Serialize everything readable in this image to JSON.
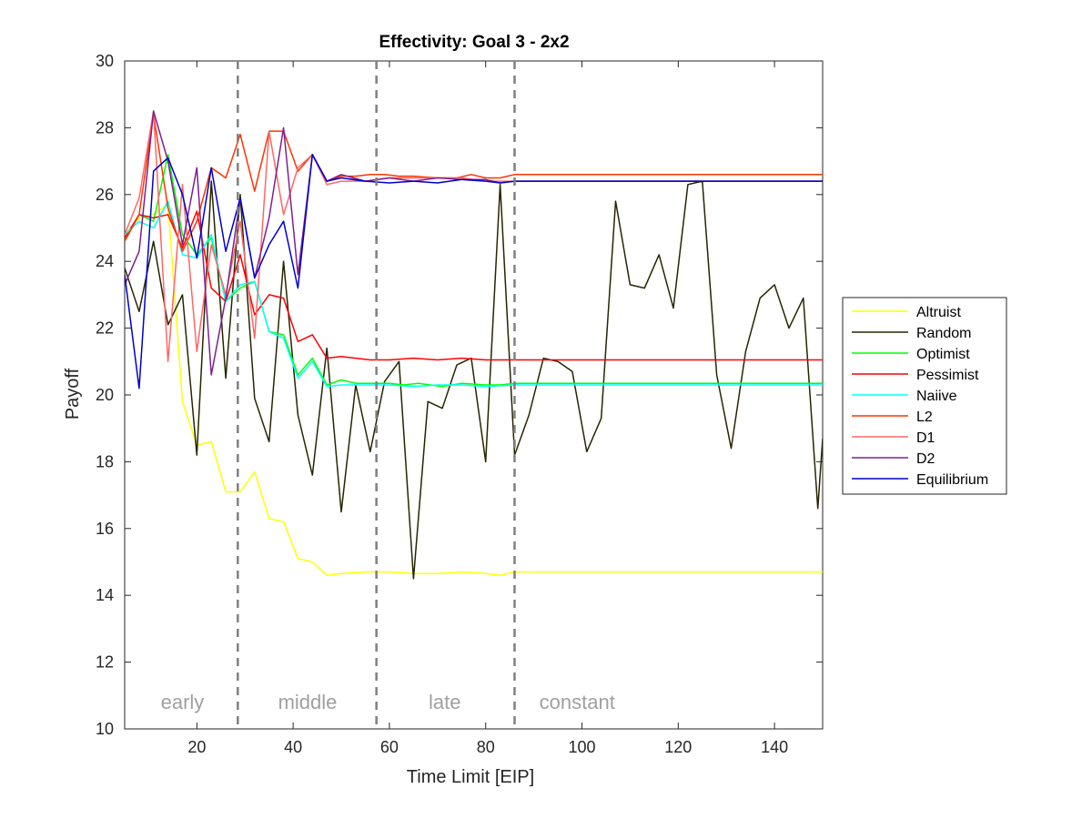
{
  "chart_data": {
    "type": "line",
    "title": "Effectivity: Goal 3 - 2x2",
    "xlabel": "Time Limit [EIP]",
    "ylabel": "Payoff",
    "xlim": [
      5,
      150
    ],
    "ylim": [
      10,
      30
    ],
    "xticks": [
      20,
      40,
      60,
      80,
      100,
      120,
      140
    ],
    "yticks": [
      10,
      12,
      14,
      16,
      18,
      20,
      22,
      24,
      26,
      28,
      30
    ],
    "grid": false,
    "legend_position": "outside-right",
    "phase_boundaries": [
      28.5,
      57.3,
      86
    ],
    "phase_labels": [
      {
        "text": "early",
        "x": 17
      },
      {
        "text": "middle",
        "x": 43
      },
      {
        "text": "late",
        "x": 71.5
      },
      {
        "text": "constant",
        "x": 99
      }
    ],
    "series": [
      {
        "name": "Altruist",
        "color": "#ffff00",
        "points": [
          [
            5,
            24.8
          ],
          [
            8,
            25.3
          ],
          [
            11,
            25.4
          ],
          [
            14,
            25.7
          ],
          [
            17,
            19.8
          ],
          [
            20,
            18.5
          ],
          [
            23,
            18.6
          ],
          [
            26,
            17.1
          ],
          [
            29,
            17.1
          ],
          [
            32,
            17.7
          ],
          [
            35,
            16.3
          ],
          [
            38,
            16.2
          ],
          [
            41,
            15.1
          ],
          [
            44,
            15.0
          ],
          [
            47,
            14.6
          ],
          [
            50,
            14.65
          ],
          [
            55,
            14.7
          ],
          [
            60,
            14.7
          ],
          [
            65,
            14.65
          ],
          [
            70,
            14.65
          ],
          [
            75,
            14.7
          ],
          [
            80,
            14.65
          ],
          [
            83,
            14.6
          ],
          [
            86,
            14.7
          ],
          [
            150,
            14.7
          ]
        ]
      },
      {
        "name": "Random",
        "color": "#262600",
        "points": [
          [
            5,
            23.8
          ],
          [
            8,
            22.5
          ],
          [
            11,
            24.6
          ],
          [
            14,
            22.1
          ],
          [
            17,
            23.0
          ],
          [
            20,
            18.2
          ],
          [
            23,
            26.4
          ],
          [
            26,
            20.5
          ],
          [
            29,
            26.0
          ],
          [
            32,
            19.9
          ],
          [
            35,
            18.6
          ],
          [
            38,
            24.0
          ],
          [
            41,
            19.4
          ],
          [
            44,
            17.6
          ],
          [
            47,
            21.4
          ],
          [
            50,
            16.5
          ],
          [
            53,
            20.3
          ],
          [
            56,
            18.3
          ],
          [
            59,
            20.4
          ],
          [
            62,
            21.0
          ],
          [
            65,
            14.5
          ],
          [
            68,
            19.8
          ],
          [
            71,
            19.6
          ],
          [
            74,
            20.9
          ],
          [
            77,
            21.1
          ],
          [
            80,
            18.0
          ],
          [
            83,
            26.3
          ],
          [
            86,
            18.2
          ],
          [
            89,
            19.4
          ],
          [
            92,
            21.1
          ],
          [
            95,
            21.0
          ],
          [
            98,
            20.7
          ],
          [
            101,
            18.3
          ],
          [
            104,
            19.3
          ],
          [
            107,
            25.8
          ],
          [
            110,
            23.3
          ],
          [
            113,
            23.2
          ],
          [
            116,
            24.2
          ],
          [
            119,
            22.6
          ],
          [
            122,
            26.3
          ],
          [
            125,
            26.4
          ],
          [
            128,
            20.6
          ],
          [
            131,
            18.4
          ],
          [
            134,
            21.3
          ],
          [
            137,
            22.9
          ],
          [
            140,
            23.3
          ],
          [
            143,
            22.0
          ],
          [
            146,
            22.9
          ],
          [
            149,
            16.6
          ],
          [
            150,
            18.7
          ]
        ]
      },
      {
        "name": "Optimist",
        "color": "#00ff00",
        "points": [
          [
            5,
            24.6
          ],
          [
            8,
            25.4
          ],
          [
            11,
            25.2
          ],
          [
            14,
            27.2
          ],
          [
            17,
            24.8
          ],
          [
            20,
            24.2
          ],
          [
            23,
            24.7
          ],
          [
            26,
            22.8
          ],
          [
            29,
            23.2
          ],
          [
            32,
            23.4
          ],
          [
            35,
            21.9
          ],
          [
            38,
            21.8
          ],
          [
            41,
            20.6
          ],
          [
            44,
            21.1
          ],
          [
            47,
            20.3
          ],
          [
            50,
            20.45
          ],
          [
            53,
            20.35
          ],
          [
            56,
            20.35
          ],
          [
            60,
            20.35
          ],
          [
            63,
            20.3
          ],
          [
            66,
            20.35
          ],
          [
            71,
            20.25
          ],
          [
            75,
            20.35
          ],
          [
            80,
            20.3
          ],
          [
            83,
            20.3
          ],
          [
            86,
            20.35
          ],
          [
            150,
            20.35
          ]
        ]
      },
      {
        "name": "Pessimist",
        "color": "#ff0000",
        "points": [
          [
            5,
            24.7
          ],
          [
            8,
            25.4
          ],
          [
            11,
            25.3
          ],
          [
            14,
            25.4
          ],
          [
            17,
            24.4
          ],
          [
            20,
            25.5
          ],
          [
            23,
            23.2
          ],
          [
            26,
            22.8
          ],
          [
            29,
            24.2
          ],
          [
            32,
            22.4
          ],
          [
            35,
            23.0
          ],
          [
            38,
            22.9
          ],
          [
            41,
            21.6
          ],
          [
            44,
            21.8
          ],
          [
            47,
            21.1
          ],
          [
            50,
            21.15
          ],
          [
            53,
            21.1
          ],
          [
            56,
            21.05
          ],
          [
            60,
            21.05
          ],
          [
            65,
            21.1
          ],
          [
            70,
            21.05
          ],
          [
            75,
            21.1
          ],
          [
            80,
            21.05
          ],
          [
            83,
            21.05
          ],
          [
            86,
            21.05
          ],
          [
            150,
            21.05
          ]
        ]
      },
      {
        "name": "Naiive",
        "color": "#00ffff",
        "points": [
          [
            5,
            24.8
          ],
          [
            8,
            25.2
          ],
          [
            11,
            25.0
          ],
          [
            14,
            25.8
          ],
          [
            17,
            24.2
          ],
          [
            20,
            24.1
          ],
          [
            23,
            24.8
          ],
          [
            26,
            22.8
          ],
          [
            29,
            23.3
          ],
          [
            32,
            23.4
          ],
          [
            35,
            21.9
          ],
          [
            38,
            21.7
          ],
          [
            41,
            20.5
          ],
          [
            44,
            21.0
          ],
          [
            47,
            20.25
          ],
          [
            50,
            20.3
          ],
          [
            55,
            20.3
          ],
          [
            60,
            20.3
          ],
          [
            65,
            20.25
          ],
          [
            70,
            20.3
          ],
          [
            75,
            20.3
          ],
          [
            80,
            20.25
          ],
          [
            86,
            20.3
          ],
          [
            150,
            20.3
          ]
        ]
      },
      {
        "name": "L2",
        "color": "#ff3300",
        "points": [
          [
            5,
            24.6
          ],
          [
            8,
            25.4
          ],
          [
            11,
            28.4
          ],
          [
            14,
            25.6
          ],
          [
            17,
            24.3
          ],
          [
            20,
            25.2
          ],
          [
            23,
            26.8
          ],
          [
            26,
            26.5
          ],
          [
            29,
            27.8
          ],
          [
            32,
            26.1
          ],
          [
            35,
            27.9
          ],
          [
            38,
            27.9
          ],
          [
            41,
            26.7
          ],
          [
            44,
            27.2
          ],
          [
            47,
            26.4
          ],
          [
            50,
            26.55
          ],
          [
            53,
            26.55
          ],
          [
            56,
            26.6
          ],
          [
            59,
            26.6
          ],
          [
            62,
            26.55
          ],
          [
            65,
            26.55
          ],
          [
            70,
            26.5
          ],
          [
            74,
            26.5
          ],
          [
            77,
            26.6
          ],
          [
            80,
            26.5
          ],
          [
            83,
            26.5
          ],
          [
            86,
            26.6
          ],
          [
            150,
            26.6
          ]
        ]
      },
      {
        "name": "D1",
        "color": "#ff6666",
        "points": [
          [
            5,
            24.8
          ],
          [
            8,
            25.9
          ],
          [
            11,
            28.5
          ],
          [
            14,
            21.0
          ],
          [
            17,
            26.3
          ],
          [
            20,
            21.3
          ],
          [
            23,
            24.5
          ],
          [
            26,
            23.0
          ],
          [
            29,
            25.2
          ],
          [
            32,
            21.7
          ],
          [
            35,
            27.9
          ],
          [
            38,
            25.4
          ],
          [
            41,
            26.8
          ],
          [
            44,
            27.2
          ],
          [
            47,
            26.3
          ],
          [
            50,
            26.4
          ],
          [
            55,
            26.4
          ],
          [
            60,
            26.5
          ],
          [
            65,
            26.5
          ],
          [
            70,
            26.5
          ],
          [
            75,
            26.5
          ],
          [
            80,
            26.4
          ],
          [
            86,
            26.4
          ],
          [
            150,
            26.4
          ]
        ]
      },
      {
        "name": "D2",
        "color": "#7f1f8f",
        "points": [
          [
            5,
            23.3
          ],
          [
            8,
            24.3
          ],
          [
            11,
            28.5
          ],
          [
            14,
            27.0
          ],
          [
            17,
            24.5
          ],
          [
            20,
            26.8
          ],
          [
            23,
            20.6
          ],
          [
            26,
            22.9
          ],
          [
            29,
            25.9
          ],
          [
            32,
            23.5
          ],
          [
            35,
            25.3
          ],
          [
            38,
            28.0
          ],
          [
            41,
            23.6
          ],
          [
            44,
            27.2
          ],
          [
            47,
            26.4
          ],
          [
            50,
            26.6
          ],
          [
            55,
            26.4
          ],
          [
            60,
            26.5
          ],
          [
            65,
            26.4
          ],
          [
            70,
            26.5
          ],
          [
            75,
            26.45
          ],
          [
            80,
            26.45
          ],
          [
            83,
            26.35
          ],
          [
            86,
            26.4
          ],
          [
            150,
            26.4
          ]
        ]
      },
      {
        "name": "Equilibrium",
        "color": "#0000cc",
        "points": [
          [
            5,
            23.6
          ],
          [
            8,
            20.2
          ],
          [
            11,
            26.7
          ],
          [
            14,
            27.1
          ],
          [
            17,
            26.0
          ],
          [
            20,
            24.1
          ],
          [
            23,
            26.8
          ],
          [
            26,
            24.3
          ],
          [
            29,
            25.9
          ],
          [
            32,
            23.5
          ],
          [
            35,
            24.5
          ],
          [
            38,
            25.2
          ],
          [
            41,
            23.2
          ],
          [
            44,
            27.2
          ],
          [
            47,
            26.4
          ],
          [
            50,
            26.5
          ],
          [
            55,
            26.4
          ],
          [
            60,
            26.35
          ],
          [
            65,
            26.4
          ],
          [
            70,
            26.35
          ],
          [
            75,
            26.45
          ],
          [
            80,
            26.4
          ],
          [
            83,
            26.35
          ],
          [
            86,
            26.4
          ],
          [
            150,
            26.4
          ]
        ]
      }
    ]
  }
}
